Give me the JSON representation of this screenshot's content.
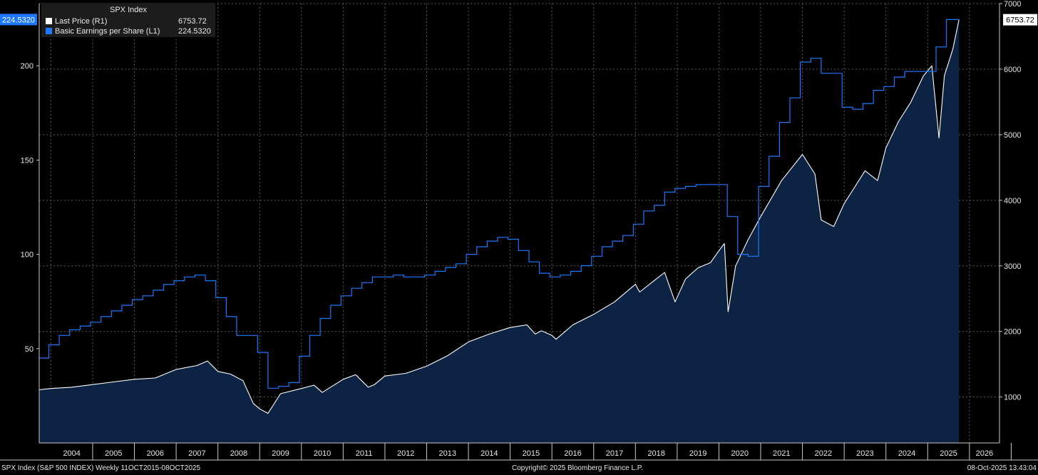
{
  "legend": {
    "title": "SPX Index",
    "series": [
      {
        "label": "Last Price  (R1)",
        "value": "6753.72",
        "color": "#ffffff"
      },
      {
        "label": "Basic Earnings per Share  (L1)",
        "value": "224.5320",
        "color": "#1e78ff"
      }
    ]
  },
  "footer": {
    "left": "SPX Index (S&P 500 INDEX) Weekly 11OCT2015-08OCT2025",
    "center": "Copyright© 2025 Bloomberg Finance L.P.",
    "right": "08-Oct-2025 13:43:04"
  },
  "colors": {
    "background": "#000000",
    "area": "#0c2344",
    "price": "#ffffff",
    "eps": "#1e78ff",
    "grid": "#5a5a5a"
  },
  "chart_data": {
    "type": "line",
    "x_tick_labels": [
      "2004",
      "2005",
      "2006",
      "2007",
      "2008",
      "2009",
      "2010",
      "2011",
      "2012",
      "2013",
      "2014",
      "2015",
      "2016",
      "2017",
      "2018",
      "2019",
      "2020",
      "2021",
      "2022",
      "2023",
      "2024",
      "2025",
      "2026"
    ],
    "xlim": [
      2003.72,
      2026.72
    ],
    "left_axis": {
      "ylim": [
        0,
        233
      ],
      "ticks": [
        50,
        100,
        150,
        200
      ],
      "last_value_label": "224.5320"
    },
    "right_axis": {
      "ylim": [
        300,
        7000
      ],
      "ticks": [
        1000,
        2000,
        3000,
        4000,
        5000,
        6000,
        7000
      ],
      "last_value_label": "6753.72"
    },
    "series": [
      {
        "name": "Last Price (R1)",
        "axis": "right",
        "style": "area",
        "x": [
          2003.72,
          2004.0,
          2004.5,
          2005.0,
          2005.5,
          2006.0,
          2006.5,
          2007.0,
          2007.5,
          2007.75,
          2008.0,
          2008.3,
          2008.6,
          2008.85,
          2009.0,
          2009.2,
          2009.5,
          2010.0,
          2010.3,
          2010.5,
          2011.0,
          2011.3,
          2011.6,
          2011.75,
          2012.0,
          2012.5,
          2013.0,
          2013.5,
          2014.0,
          2014.5,
          2015.0,
          2015.4,
          2015.6,
          2015.75,
          2016.0,
          2016.1,
          2016.5,
          2017.0,
          2017.5,
          2018.0,
          2018.1,
          2018.5,
          2018.7,
          2018.95,
          2019.2,
          2019.5,
          2019.8,
          2020.0,
          2020.13,
          2020.22,
          2020.4,
          2020.7,
          2021.0,
          2021.5,
          2022.0,
          2022.3,
          2022.45,
          2022.75,
          2023.0,
          2023.2,
          2023.5,
          2023.8,
          2024.0,
          2024.3,
          2024.6,
          2024.9,
          2025.1,
          2025.27,
          2025.4,
          2025.6,
          2025.75
        ],
        "y": [
          1110,
          1130,
          1150,
          1190,
          1230,
          1270,
          1290,
          1420,
          1480,
          1550,
          1390,
          1350,
          1250,
          900,
          820,
          750,
          1050,
          1130,
          1180,
          1070,
          1270,
          1340,
          1150,
          1190,
          1320,
          1360,
          1470,
          1630,
          1840,
          1960,
          2060,
          2100,
          1960,
          2010,
          1940,
          1880,
          2100,
          2260,
          2450,
          2720,
          2600,
          2800,
          2900,
          2450,
          2800,
          2970,
          3050,
          3230,
          3340,
          2300,
          3000,
          3400,
          3750,
          4300,
          4700,
          4400,
          3700,
          3600,
          3950,
          4150,
          4450,
          4300,
          4800,
          5200,
          5500,
          5900,
          6050,
          4950,
          5900,
          6300,
          6753.72
        ]
      },
      {
        "name": "Basic Earnings per Share (L1)",
        "axis": "left",
        "style": "step",
        "x": [
          2003.72,
          2003.95,
          2004.2,
          2004.45,
          2004.7,
          2004.95,
          2005.2,
          2005.45,
          2005.7,
          2005.95,
          2006.2,
          2006.45,
          2006.7,
          2006.95,
          2007.2,
          2007.45,
          2007.7,
          2007.95,
          2008.2,
          2008.45,
          2008.7,
          2008.95,
          2009.2,
          2009.45,
          2009.7,
          2009.95,
          2010.2,
          2010.45,
          2010.7,
          2010.95,
          2011.2,
          2011.45,
          2011.7,
          2011.95,
          2012.2,
          2012.45,
          2012.7,
          2012.95,
          2013.2,
          2013.45,
          2013.7,
          2013.95,
          2014.2,
          2014.45,
          2014.7,
          2014.95,
          2015.2,
          2015.45,
          2015.7,
          2015.95,
          2016.2,
          2016.45,
          2016.7,
          2016.95,
          2017.2,
          2017.45,
          2017.7,
          2017.95,
          2018.2,
          2018.45,
          2018.7,
          2018.95,
          2019.2,
          2019.45,
          2019.7,
          2019.95,
          2020.2,
          2020.45,
          2020.7,
          2020.95,
          2021.2,
          2021.45,
          2021.7,
          2021.95,
          2022.2,
          2022.45,
          2022.7,
          2022.95,
          2023.2,
          2023.45,
          2023.7,
          2023.95,
          2024.2,
          2024.45,
          2024.7,
          2024.95,
          2025.2,
          2025.45
        ],
        "y": [
          45,
          52,
          57,
          60,
          62,
          64,
          67,
          70,
          73,
          76,
          78,
          81,
          84,
          86,
          88,
          89,
          86,
          77,
          67,
          57,
          57,
          48,
          29,
          30,
          32,
          46,
          57,
          66,
          73,
          78,
          82,
          85,
          88,
          88,
          89,
          88,
          88,
          89,
          91,
          93,
          95,
          100,
          104,
          107,
          109,
          108,
          102,
          96,
          90,
          88,
          89,
          91,
          94,
          99,
          104,
          107,
          110,
          116,
          123,
          126,
          133,
          135,
          136,
          137,
          137,
          137,
          120,
          100,
          99,
          136,
          152,
          170,
          183,
          202,
          204,
          196,
          196,
          178,
          177,
          180,
          187,
          189,
          194,
          197,
          197,
          197,
          210,
          224.532
        ]
      }
    ]
  }
}
